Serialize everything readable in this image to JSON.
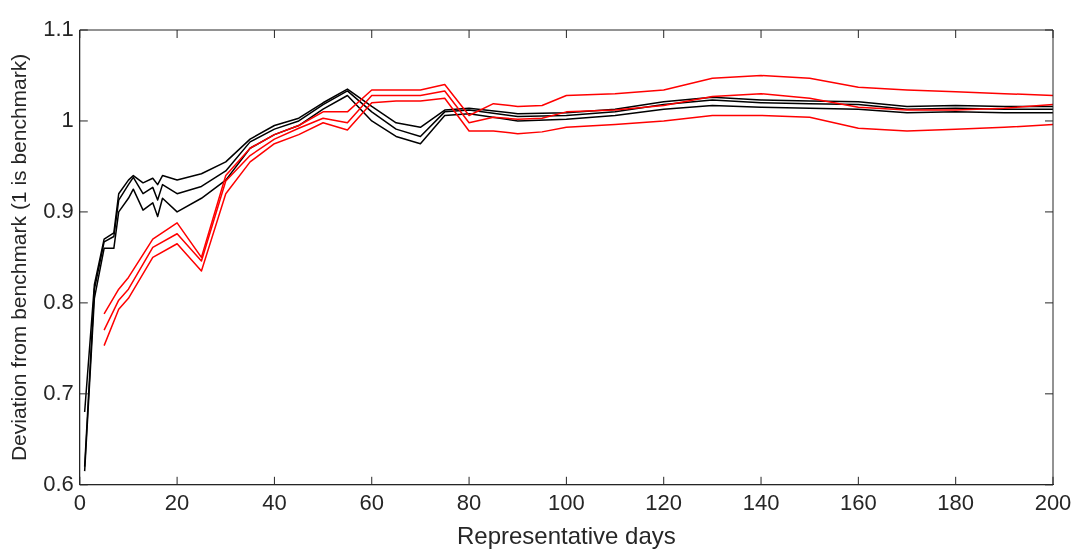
{
  "chart_data": {
    "type": "line",
    "xlabel": "Representative days",
    "ylabel": "Deviation from benchmark (1 is benchmark)",
    "xlim": [
      0,
      200
    ],
    "xticks": [
      0,
      20,
      40,
      60,
      80,
      100,
      120,
      140,
      160,
      180,
      200
    ],
    "ylim": [
      0.6,
      1.1
    ],
    "yticks": [
      0.6,
      0.7,
      0.8,
      0.9,
      1,
      1.1
    ],
    "grid": false,
    "legend": false,
    "marker": "none",
    "line_style": "solid",
    "series": [
      {
        "color": "#ff0000",
        "x": [
          5,
          8,
          10,
          15,
          20,
          25,
          30,
          35,
          40,
          45,
          50,
          55,
          60,
          65,
          70,
          75,
          80,
          85,
          90,
          95,
          100,
          110,
          120,
          130,
          140,
          150,
          160,
          170,
          180,
          190,
          200
        ],
        "values": [
          0.788,
          0.815,
          0.828,
          0.87,
          0.888,
          0.85,
          0.94,
          0.97,
          0.985,
          0.995,
          1.01,
          1.01,
          1.034,
          1.034,
          1.034,
          1.04,
          1.006,
          1.019,
          1.016,
          1.017,
          1.028,
          1.03,
          1.034,
          1.047,
          1.05,
          1.047,
          1.037,
          1.034,
          1.032,
          1.03,
          1.028
        ]
      },
      {
        "color": "#ff0000",
        "x": [
          5,
          8,
          10,
          15,
          20,
          25,
          30,
          35,
          40,
          45,
          50,
          55,
          60,
          65,
          70,
          75,
          80,
          85,
          90,
          95,
          100,
          110,
          120,
          130,
          140,
          150,
          160,
          170,
          180,
          190,
          200
        ],
        "values": [
          0.77,
          0.803,
          0.815,
          0.861,
          0.876,
          0.846,
          0.934,
          0.962,
          0.98,
          0.992,
          1.003,
          0.998,
          1.028,
          1.028,
          1.028,
          1.033,
          0.998,
          1.004,
          1.002,
          1.003,
          1.01,
          1.012,
          1.017,
          1.027,
          1.03,
          1.025,
          1.015,
          1.012,
          1.012,
          1.014,
          1.018
        ]
      },
      {
        "color": "#ff0000",
        "x": [
          5,
          8,
          10,
          15,
          20,
          25,
          30,
          35,
          40,
          45,
          50,
          55,
          60,
          65,
          70,
          75,
          80,
          85,
          90,
          95,
          100,
          110,
          120,
          130,
          140,
          150,
          160,
          170,
          180,
          190,
          200
        ],
        "values": [
          0.753,
          0.793,
          0.805,
          0.85,
          0.865,
          0.835,
          0.92,
          0.955,
          0.975,
          0.985,
          0.998,
          0.99,
          1.02,
          1.022,
          1.022,
          1.025,
          0.989,
          0.989,
          0.986,
          0.988,
          0.993,
          0.996,
          1.0,
          1.006,
          1.006,
          1.004,
          0.992,
          0.989,
          0.991,
          0.993,
          0.996
        ]
      },
      {
        "color": "#000000",
        "x": [
          1,
          3,
          5,
          7,
          8,
          10,
          11,
          13,
          15,
          16,
          17,
          20,
          25,
          30,
          35,
          40,
          45,
          50,
          55,
          60,
          65,
          70,
          75,
          80,
          90,
          100,
          110,
          120,
          130,
          140,
          150,
          160,
          170,
          180,
          190,
          200
        ],
        "values": [
          0.68,
          0.82,
          0.87,
          0.877,
          0.92,
          0.935,
          0.94,
          0.932,
          0.937,
          0.93,
          0.94,
          0.935,
          0.942,
          0.955,
          0.98,
          0.995,
          1.003,
          1.02,
          1.035,
          1.016,
          0.998,
          0.993,
          1.012,
          1.014,
          1.008,
          1.009,
          1.013,
          1.021,
          1.026,
          1.023,
          1.022,
          1.021,
          1.016,
          1.017,
          1.016,
          1.016
        ]
      },
      {
        "color": "#000000",
        "x": [
          1,
          3,
          5,
          7,
          8,
          10,
          11,
          13,
          15,
          16,
          17,
          20,
          25,
          30,
          35,
          40,
          45,
          50,
          55,
          60,
          65,
          70,
          75,
          80,
          90,
          100,
          110,
          120,
          130,
          140,
          150,
          160,
          170,
          180,
          190,
          200
        ],
        "values": [
          0.62,
          0.815,
          0.867,
          0.873,
          0.913,
          0.93,
          0.938,
          0.92,
          0.927,
          0.913,
          0.93,
          0.92,
          0.928,
          0.945,
          0.977,
          0.991,
          1.0,
          1.018,
          1.033,
          1.01,
          0.991,
          0.983,
          1.01,
          1.012,
          1.005,
          1.006,
          1.01,
          1.018,
          1.023,
          1.02,
          1.019,
          1.018,
          1.013,
          1.014,
          1.013,
          1.013
        ]
      },
      {
        "color": "#000000",
        "x": [
          1,
          3,
          5,
          7,
          8,
          10,
          11,
          13,
          15,
          16,
          17,
          20,
          25,
          30,
          35,
          40,
          45,
          50,
          55,
          60,
          65,
          70,
          75,
          80,
          90,
          100,
          110,
          120,
          130,
          140,
          150,
          160,
          170,
          180,
          190,
          200
        ],
        "values": [
          0.615,
          0.805,
          0.86,
          0.86,
          0.9,
          0.915,
          0.925,
          0.902,
          0.91,
          0.895,
          0.915,
          0.9,
          0.915,
          0.935,
          0.97,
          0.985,
          0.995,
          1.013,
          1.028,
          1.0,
          0.983,
          0.975,
          1.006,
          1.008,
          1.0,
          1.002,
          1.006,
          1.013,
          1.017,
          1.015,
          1.014,
          1.013,
          1.009,
          1.01,
          1.009,
          1.009
        ]
      }
    ]
  }
}
